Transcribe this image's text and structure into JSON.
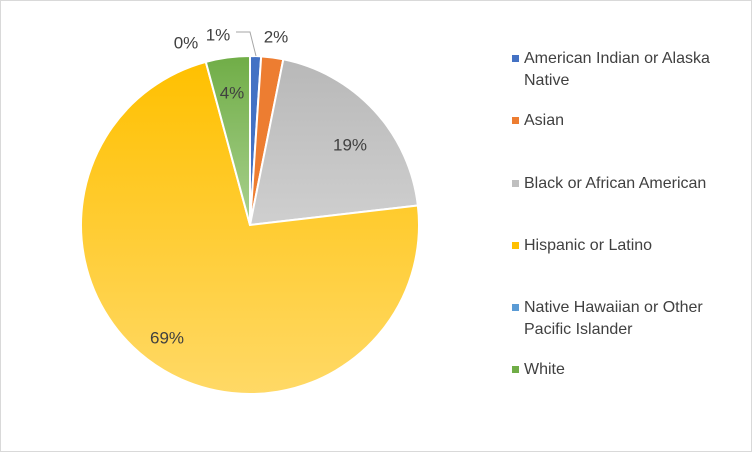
{
  "chart_data": {
    "type": "pie",
    "title": "",
    "categories": [
      "American Indian or Alaska Native",
      "Asian",
      "Black or African American",
      "Hispanic or Latino",
      "Native Hawaiian or Other Pacific Islander",
      "White"
    ],
    "values": [
      1,
      2,
      19,
      69,
      0,
      4
    ],
    "labels": [
      "1%",
      "2%",
      "19%",
      "69%",
      "0%",
      "4%"
    ],
    "colors": [
      "#4472C4",
      "#ED7D31",
      "#BFBFBF",
      "#FFC000",
      "#5B9BD5",
      "#70AD47"
    ],
    "legend_position": "right",
    "start_angle_deg": 0,
    "direction": "clockwise"
  }
}
